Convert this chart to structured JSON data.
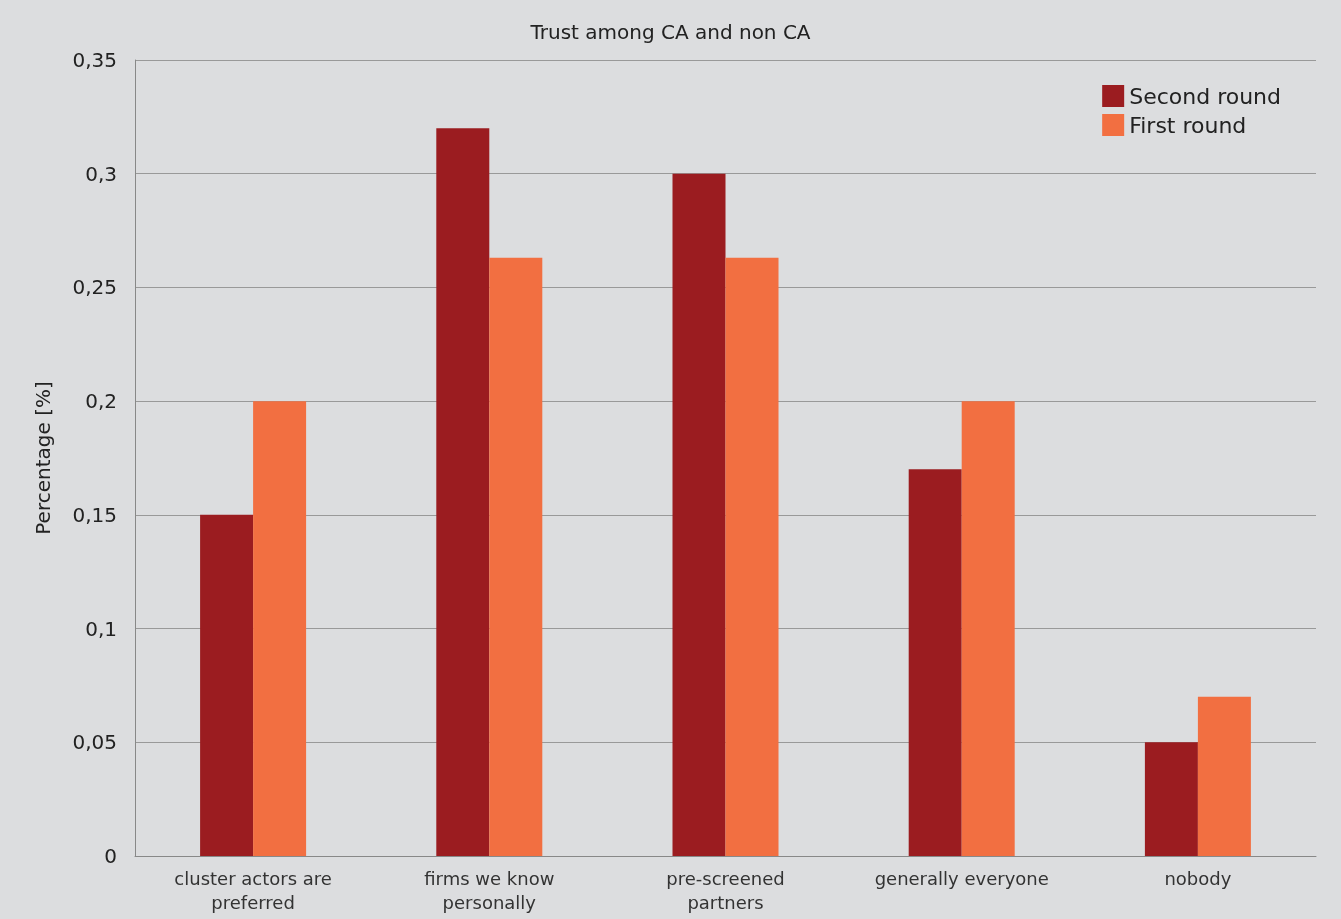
{
  "chart_data": {
    "type": "bar",
    "title": "Trust among CA and non CA",
    "ylabel": "Percentage [%]",
    "categories": [
      "cluster actors are\npreferred",
      "firms we know\npersonally",
      "pre-screened\npartners",
      "generally everyone",
      "nobody"
    ],
    "series": [
      {
        "name": "Second round",
        "color": "#9b1c20",
        "values": [
          0.15,
          0.32,
          0.3,
          0.17,
          0.05
        ]
      },
      {
        "name": "First round",
        "color": "#f26f41",
        "values": [
          0.2,
          0.263,
          0.263,
          0.2,
          0.07
        ]
      }
    ],
    "ylim": [
      0,
      0.35
    ],
    "yticks": [
      0,
      {
        "value": 0.05,
        "label": "0,05"
      },
      {
        "value": 0.1,
        "label": "0,1"
      },
      {
        "value": 0.15,
        "label": "0,15"
      },
      {
        "value": 0.2,
        "label": "0,2"
      },
      {
        "value": 0.25,
        "label": "0,25"
      },
      {
        "value": 0.3,
        "label": "0,3"
      },
      {
        "value": 0.35,
        "label": "0,35"
      }
    ],
    "grid": "y",
    "legend": "top right"
  }
}
